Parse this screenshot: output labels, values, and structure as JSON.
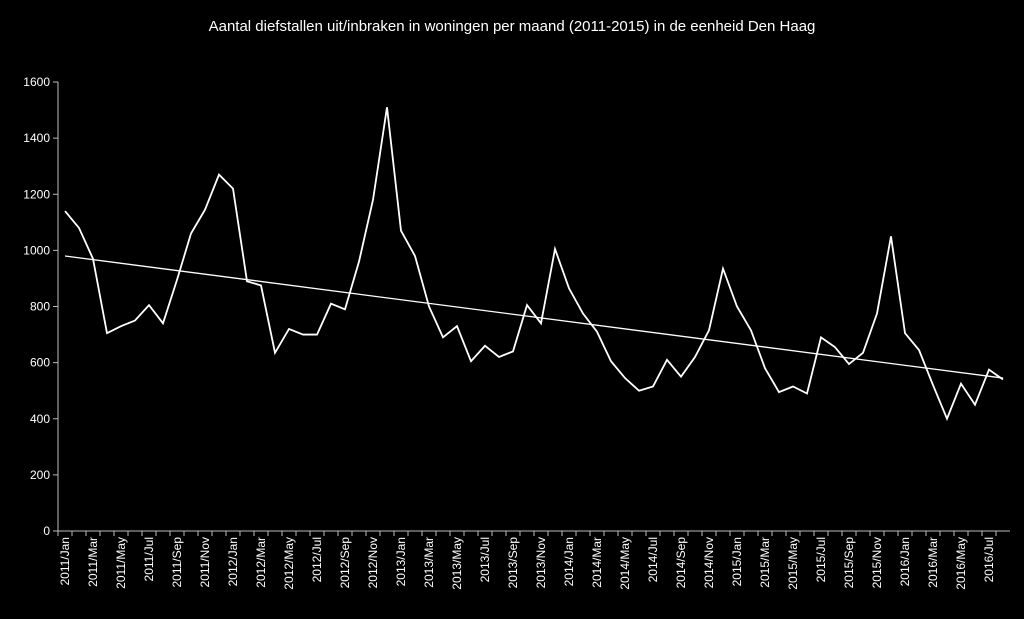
{
  "chart_data": {
    "type": "line",
    "title": "Aantal diefstallen uit/inbraken in woningen per maand (2011-2015) in de eenheid Den Haag",
    "categories": [
      "2011/Jan",
      null,
      "2011/Mar",
      null,
      "2011/May",
      null,
      "2011/Jul",
      null,
      "2011/Sep",
      null,
      "2011/Nov",
      null,
      "2012/Jan",
      null,
      "2012/Mar",
      null,
      "2012/May",
      null,
      "2012/Jul",
      null,
      "2012/Sep",
      null,
      "2012/Nov",
      null,
      "2013/Jan",
      null,
      "2013/Mar",
      null,
      "2013/May",
      null,
      "2013/Jul",
      null,
      "2013/Sep",
      null,
      "2013/Nov",
      null,
      "2014/Jan",
      null,
      "2014/Mar",
      null,
      "2014/May",
      null,
      "2014/Jul",
      null,
      "2014/Sep",
      null,
      "2014/Nov",
      null,
      "2015/Jan",
      null,
      "2015/Mar",
      null,
      "2015/May",
      null,
      "2015/Jul",
      null,
      "2015/Sep",
      null,
      "2015/Nov",
      null,
      "2016/Jan",
      null,
      "2016/Mar",
      null,
      "2016/May",
      null,
      "2016/Jul",
      null
    ],
    "values": [
      1140,
      1080,
      970,
      705,
      730,
      750,
      805,
      740,
      895,
      1060,
      1145,
      1270,
      1220,
      890,
      875,
      635,
      720,
      700,
      700,
      810,
      790,
      960,
      1180,
      1510,
      1070,
      980,
      800,
      690,
      730,
      605,
      660,
      620,
      640,
      805,
      740,
      1005,
      865,
      775,
      710,
      605,
      545,
      500,
      515,
      610,
      550,
      620,
      715,
      935,
      800,
      715,
      580,
      495,
      515,
      490,
      690,
      655,
      595,
      635,
      775,
      1050,
      705,
      645,
      520,
      400,
      525,
      450,
      575,
      540
    ],
    "color": "#ffffff",
    "trendline": {
      "start": 980,
      "end": 545,
      "color": "#ffffff"
    },
    "ylim": [
      0,
      1600
    ],
    "yticks": [
      0,
      200,
      400,
      600,
      800,
      1000,
      1200,
      1400,
      1600
    ],
    "grid": false
  }
}
